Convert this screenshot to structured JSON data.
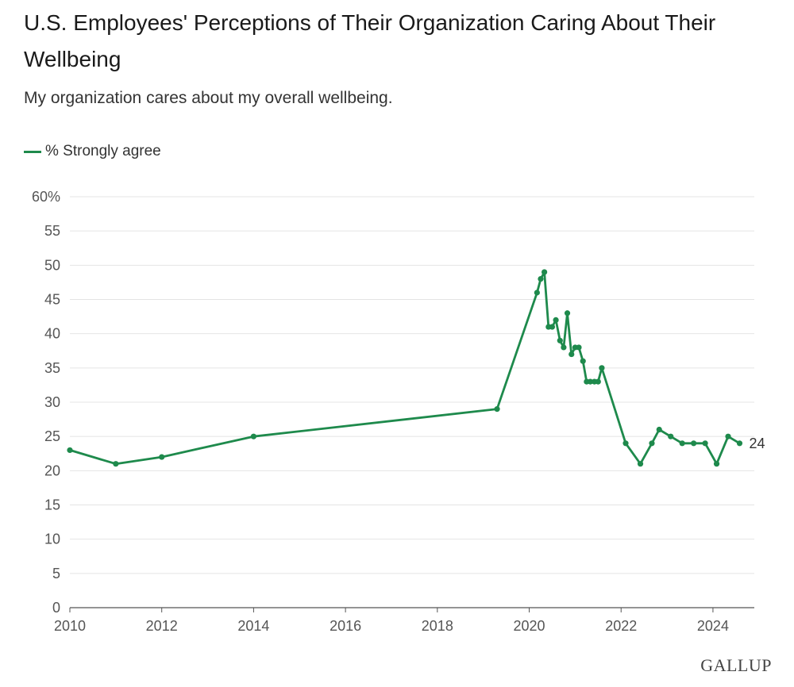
{
  "colors": {
    "series": "#1e8a4c",
    "grid": "#e4e4e4",
    "axis": "#555555"
  },
  "source_label": "GALLUP",
  "chart_data": {
    "type": "line",
    "title": "U.S. Employees' Perceptions of Their Organization Caring About Their Wellbeing",
    "subtitle": "My organization cares about my overall wellbeing.",
    "xlabel": "",
    "ylabel": "",
    "legend": "top-left",
    "grid": true,
    "xlim": [
      2010,
      2024.9
    ],
    "ylim": [
      0,
      60
    ],
    "xticks": [
      2010,
      2012,
      2014,
      2016,
      2018,
      2020,
      2022,
      2024
    ],
    "yticks": [
      0,
      5,
      10,
      15,
      20,
      25,
      30,
      35,
      40,
      45,
      50,
      55,
      60
    ],
    "ytick_labels": [
      "0",
      "5",
      "10",
      "15",
      "20",
      "25",
      "30",
      "35",
      "40",
      "45",
      "50",
      "55",
      "60%"
    ],
    "end_label": "24",
    "series": [
      {
        "name": "% Strongly agree",
        "x": [
          2010.0,
          2011.0,
          2012.0,
          2014.0,
          2019.3,
          2020.17,
          2020.25,
          2020.33,
          2020.42,
          2020.5,
          2020.58,
          2020.67,
          2020.75,
          2020.83,
          2020.92,
          2021.0,
          2021.08,
          2021.17,
          2021.25,
          2021.33,
          2021.42,
          2021.5,
          2021.58,
          2022.1,
          2022.42,
          2022.67,
          2022.83,
          2023.08,
          2023.33,
          2023.58,
          2023.83,
          2024.08,
          2024.33,
          2024.58
        ],
        "values": [
          23,
          21,
          22,
          25,
          29,
          46,
          48,
          49,
          41,
          41,
          42,
          39,
          38,
          43,
          37,
          38,
          38,
          36,
          33,
          33,
          33,
          33,
          35,
          24,
          21,
          24,
          26,
          25,
          24,
          24,
          24,
          21,
          25,
          24
        ]
      }
    ]
  }
}
